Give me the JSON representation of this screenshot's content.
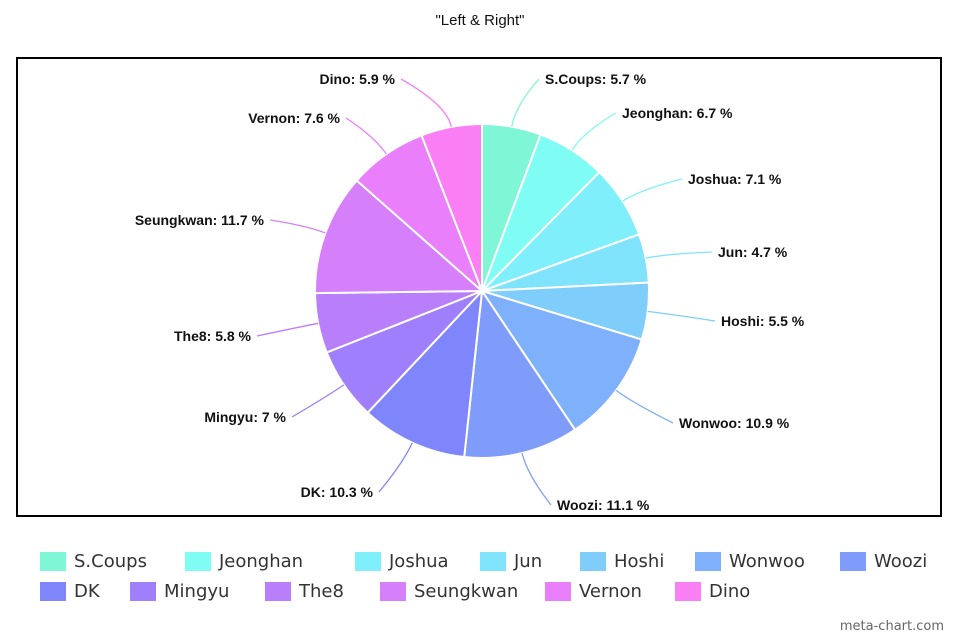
{
  "chart_data": {
    "type": "pie",
    "title": "\"Left & Right\"",
    "slices": [
      {
        "label": "S.Coups",
        "value": 5.7,
        "text": "S.Coups: 5.7 %",
        "color": "#7ff6d6"
      },
      {
        "label": "Jeonghan",
        "value": 6.7,
        "text": "Jeonghan: 6.7 %",
        "color": "#7ffcf3"
      },
      {
        "label": "Joshua",
        "value": 7.1,
        "text": "Joshua: 7.1 %",
        "color": "#7ff0fb"
      },
      {
        "label": "Jun",
        "value": 4.7,
        "text": "Jun: 4.7 %",
        "color": "#7fe3fb"
      },
      {
        "label": "Hoshi",
        "value": 5.5,
        "text": "Hoshi: 5.5 %",
        "color": "#7fcdfb"
      },
      {
        "label": "Wonwoo",
        "value": 10.9,
        "text": "Wonwoo: 10.9 %",
        "color": "#7fb0fb"
      },
      {
        "label": "Woozi",
        "value": 11.1,
        "text": "Woozi: 11.1 %",
        "color": "#7f9cfb"
      },
      {
        "label": "DK",
        "value": 10.3,
        "text": "DK: 10.3 %",
        "color": "#7f86fb"
      },
      {
        "label": "Mingyu",
        "value": 7.0,
        "text": "Mingyu: 7 %",
        "color": "#9f7ffb"
      },
      {
        "label": "The8",
        "value": 5.8,
        "text": "The8: 5.8 %",
        "color": "#b97ffb"
      },
      {
        "label": "Seungkwan",
        "value": 11.7,
        "text": "Seungkwan: 11.7 %",
        "color": "#d57ffb"
      },
      {
        "label": "Vernon",
        "value": 7.6,
        "text": "Vernon: 7.6 %",
        "color": "#ea7ffb"
      },
      {
        "label": "Dino",
        "value": 5.9,
        "text": "Dino: 5.9 %",
        "color": "#fb7ff4"
      }
    ],
    "legend_placement": "bottom"
  },
  "watermark": "meta-chart.com"
}
